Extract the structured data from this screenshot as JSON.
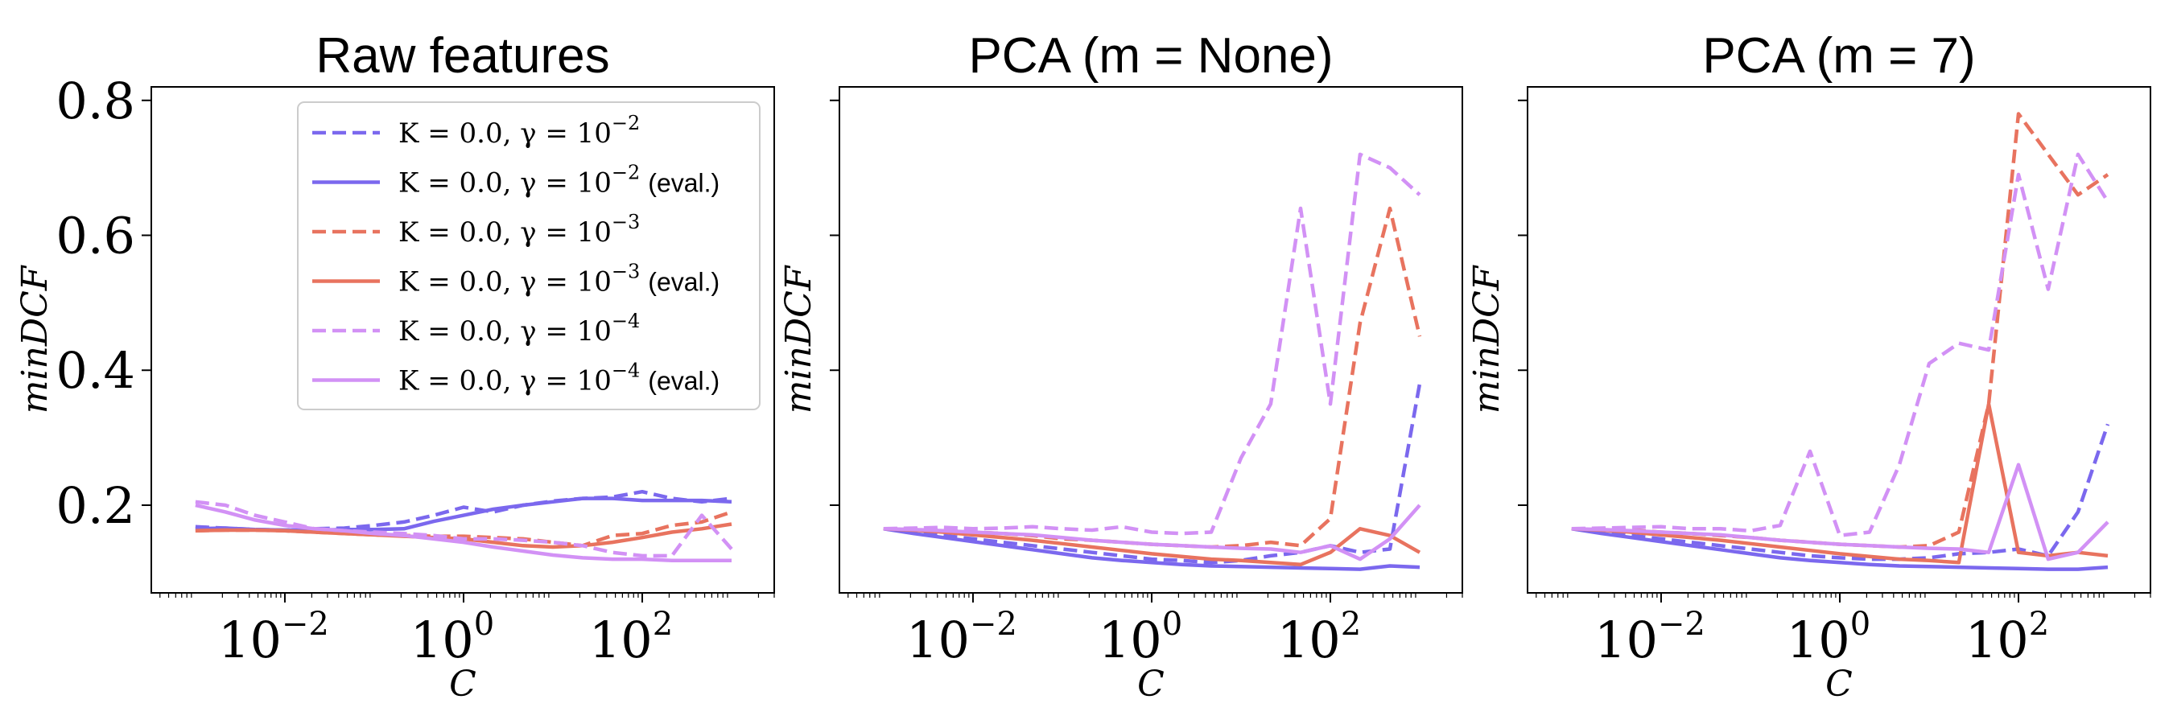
{
  "colors": {
    "blue": "#7b68ee",
    "red": "#e8735f",
    "violet": "#d291f5"
  },
  "chart_data": [
    {
      "type": "line",
      "title": "Raw features",
      "xlabel": "C",
      "ylabel": "minDCF",
      "xscale": "log",
      "xlim": [
        0.00032,
        3000
      ],
      "ylim": [
        0.07,
        0.82
      ],
      "yticks": [
        0.2,
        0.4,
        0.6,
        0.8
      ],
      "yticklabels": [
        "0.2",
        "0.4",
        "0.6",
        "0.8"
      ],
      "xticks": [
        0.01,
        1,
        100
      ],
      "xticklabels": [
        "10",
        "10",
        "10"
      ],
      "xtickexponents": [
        "−2",
        "0",
        "2"
      ],
      "show_yticklabels": true,
      "grid": false,
      "legend": {
        "position": "top-right",
        "entries": [
          {
            "label": "K = 0.0, γ = 10",
            "exp": "−2",
            "suffix": "",
            "color": "blue",
            "dash": true
          },
          {
            "label": "K = 0.0, γ = 10",
            "exp": "−2",
            "suffix": "(eval.)",
            "color": "blue",
            "dash": false
          },
          {
            "label": "K = 0.0, γ = 10",
            "exp": "−3",
            "suffix": "",
            "color": "red",
            "dash": true
          },
          {
            "label": "K = 0.0, γ = 10",
            "exp": "−3",
            "suffix": "(eval.)",
            "color": "red",
            "dash": false
          },
          {
            "label": "K = 0.0, γ = 10",
            "exp": "−4",
            "suffix": "",
            "color": "violet",
            "dash": true
          },
          {
            "label": "K = 0.0, γ = 10",
            "exp": "−4",
            "suffix": "(eval.)",
            "color": "violet",
            "dash": false
          }
        ]
      },
      "x": [
        0.001,
        0.00216,
        0.00464,
        0.01,
        0.0215,
        0.0464,
        0.1,
        0.215,
        0.464,
        1,
        2.15,
        4.64,
        10,
        21.5,
        46.4,
        100,
        215,
        464,
        1000
      ],
      "series": [
        {
          "color": "blue",
          "dash": true,
          "values": [
            0.168,
            0.166,
            0.164,
            0.163,
            0.165,
            0.166,
            0.17,
            0.175,
            0.185,
            0.197,
            0.19,
            0.2,
            0.206,
            0.21,
            0.212,
            0.22,
            0.21,
            0.205,
            0.21
          ]
        },
        {
          "color": "blue",
          "dash": false,
          "values": [
            0.165,
            0.166,
            0.164,
            0.163,
            0.163,
            0.164,
            0.164,
            0.165,
            0.176,
            0.185,
            0.194,
            0.2,
            0.205,
            0.21,
            0.21,
            0.207,
            0.207,
            0.207,
            0.205
          ]
        },
        {
          "color": "red",
          "dash": true,
          "values": [
            0.162,
            0.163,
            0.163,
            0.162,
            0.16,
            0.158,
            0.156,
            0.155,
            0.154,
            0.154,
            0.152,
            0.15,
            0.145,
            0.14,
            0.155,
            0.158,
            0.17,
            0.175,
            0.19
          ]
        },
        {
          "color": "red",
          "dash": false,
          "values": [
            0.162,
            0.163,
            0.163,
            0.162,
            0.16,
            0.158,
            0.156,
            0.154,
            0.152,
            0.15,
            0.145,
            0.14,
            0.138,
            0.14,
            0.145,
            0.152,
            0.16,
            0.165,
            0.172
          ]
        },
        {
          "color": "violet",
          "dash": true,
          "values": [
            0.205,
            0.2,
            0.185,
            0.175,
            0.165,
            0.162,
            0.16,
            0.158,
            0.155,
            0.15,
            0.15,
            0.148,
            0.145,
            0.14,
            0.13,
            0.125,
            0.125,
            0.185,
            0.135
          ]
        },
        {
          "color": "violet",
          "dash": false,
          "values": [
            0.2,
            0.19,
            0.178,
            0.17,
            0.165,
            0.162,
            0.158,
            0.155,
            0.15,
            0.145,
            0.138,
            0.132,
            0.126,
            0.122,
            0.12,
            0.12,
            0.118,
            0.118,
            0.118
          ]
        }
      ]
    },
    {
      "type": "line",
      "title": "PCA (m = None)",
      "xlabel": "C",
      "ylabel": "minDCF",
      "xscale": "log",
      "xlim": [
        0.00032,
        3000
      ],
      "ylim": [
        0.07,
        0.82
      ],
      "yticks": [
        0.2,
        0.4,
        0.6,
        0.8
      ],
      "xticks": [
        0.01,
        1,
        100
      ],
      "xticklabels": [
        "10",
        "10",
        "10"
      ],
      "xtickexponents": [
        "−2",
        "0",
        "2"
      ],
      "show_yticklabels": false,
      "grid": false,
      "x": [
        0.001,
        0.00216,
        0.00464,
        0.01,
        0.0215,
        0.0464,
        0.1,
        0.215,
        0.464,
        1,
        2.15,
        4.64,
        10,
        21.5,
        46.4,
        100,
        215,
        464,
        1000
      ],
      "series": [
        {
          "color": "blue",
          "dash": true,
          "values": [
            0.165,
            0.16,
            0.155,
            0.15,
            0.145,
            0.14,
            0.135,
            0.13,
            0.125,
            0.12,
            0.118,
            0.115,
            0.118,
            0.125,
            0.13,
            0.14,
            0.13,
            0.135,
            0.38
          ]
        },
        {
          "color": "blue",
          "dash": false,
          "values": [
            0.165,
            0.158,
            0.152,
            0.146,
            0.14,
            0.134,
            0.128,
            0.122,
            0.118,
            0.115,
            0.112,
            0.11,
            0.109,
            0.108,
            0.107,
            0.106,
            0.105,
            0.11,
            0.108
          ]
        },
        {
          "color": "red",
          "dash": true,
          "values": [
            0.165,
            0.165,
            0.163,
            0.16,
            0.158,
            0.155,
            0.15,
            0.148,
            0.145,
            0.142,
            0.14,
            0.138,
            0.14,
            0.145,
            0.14,
            0.18,
            0.47,
            0.64,
            0.45
          ]
        },
        {
          "color": "red",
          "dash": false,
          "values": [
            0.165,
            0.163,
            0.16,
            0.156,
            0.152,
            0.148,
            0.143,
            0.138,
            0.133,
            0.128,
            0.124,
            0.12,
            0.118,
            0.115,
            0.112,
            0.13,
            0.165,
            0.155,
            0.13
          ]
        },
        {
          "color": "violet",
          "dash": true,
          "values": [
            0.165,
            0.166,
            0.167,
            0.165,
            0.166,
            0.168,
            0.165,
            0.163,
            0.168,
            0.16,
            0.158,
            0.16,
            0.27,
            0.35,
            0.64,
            0.35,
            0.72,
            0.7,
            0.66
          ]
        },
        {
          "color": "violet",
          "dash": false,
          "values": [
            0.165,
            0.164,
            0.162,
            0.16,
            0.158,
            0.156,
            0.152,
            0.148,
            0.145,
            0.142,
            0.14,
            0.138,
            0.136,
            0.135,
            0.13,
            0.14,
            0.12,
            0.15,
            0.2
          ]
        }
      ]
    },
    {
      "type": "line",
      "title": "PCA (m = 7)",
      "xlabel": "C",
      "ylabel": "minDCF",
      "xscale": "log",
      "xlim": [
        0.00032,
        3000
      ],
      "ylim": [
        0.07,
        0.82
      ],
      "yticks": [
        0.2,
        0.4,
        0.6,
        0.8
      ],
      "xticks": [
        0.01,
        1,
        100
      ],
      "xticklabels": [
        "10",
        "10",
        "10"
      ],
      "xtickexponents": [
        "−2",
        "0",
        "2"
      ],
      "show_yticklabels": false,
      "grid": false,
      "x": [
        0.001,
        0.00216,
        0.00464,
        0.01,
        0.0215,
        0.0464,
        0.1,
        0.215,
        0.464,
        1,
        2.15,
        4.64,
        10,
        21.5,
        46.4,
        100,
        215,
        464,
        1000
      ],
      "series": [
        {
          "color": "blue",
          "dash": true,
          "values": [
            0.165,
            0.16,
            0.155,
            0.15,
            0.145,
            0.14,
            0.135,
            0.13,
            0.125,
            0.122,
            0.12,
            0.12,
            0.122,
            0.128,
            0.13,
            0.135,
            0.125,
            0.19,
            0.32
          ]
        },
        {
          "color": "blue",
          "dash": false,
          "values": [
            0.165,
            0.158,
            0.152,
            0.146,
            0.14,
            0.134,
            0.128,
            0.122,
            0.118,
            0.115,
            0.112,
            0.11,
            0.109,
            0.108,
            0.107,
            0.106,
            0.105,
            0.105,
            0.108
          ]
        },
        {
          "color": "red",
          "dash": true,
          "values": [
            0.165,
            0.165,
            0.163,
            0.16,
            0.158,
            0.155,
            0.152,
            0.148,
            0.145,
            0.142,
            0.14,
            0.138,
            0.14,
            0.16,
            0.35,
            0.78,
            0.72,
            0.66,
            0.69
          ]
        },
        {
          "color": "red",
          "dash": false,
          "values": [
            0.165,
            0.163,
            0.16,
            0.156,
            0.152,
            0.148,
            0.143,
            0.138,
            0.133,
            0.128,
            0.124,
            0.12,
            0.118,
            0.115,
            0.35,
            0.13,
            0.125,
            0.13,
            0.125
          ]
        },
        {
          "color": "violet",
          "dash": true,
          "values": [
            0.165,
            0.166,
            0.167,
            0.168,
            0.165,
            0.165,
            0.162,
            0.17,
            0.28,
            0.155,
            0.16,
            0.26,
            0.41,
            0.44,
            0.43,
            0.69,
            0.52,
            0.72,
            0.65
          ]
        },
        {
          "color": "violet",
          "dash": false,
          "values": [
            0.165,
            0.164,
            0.162,
            0.16,
            0.158,
            0.156,
            0.152,
            0.148,
            0.145,
            0.142,
            0.14,
            0.138,
            0.136,
            0.135,
            0.13,
            0.26,
            0.12,
            0.13,
            0.175
          ]
        }
      ]
    }
  ]
}
